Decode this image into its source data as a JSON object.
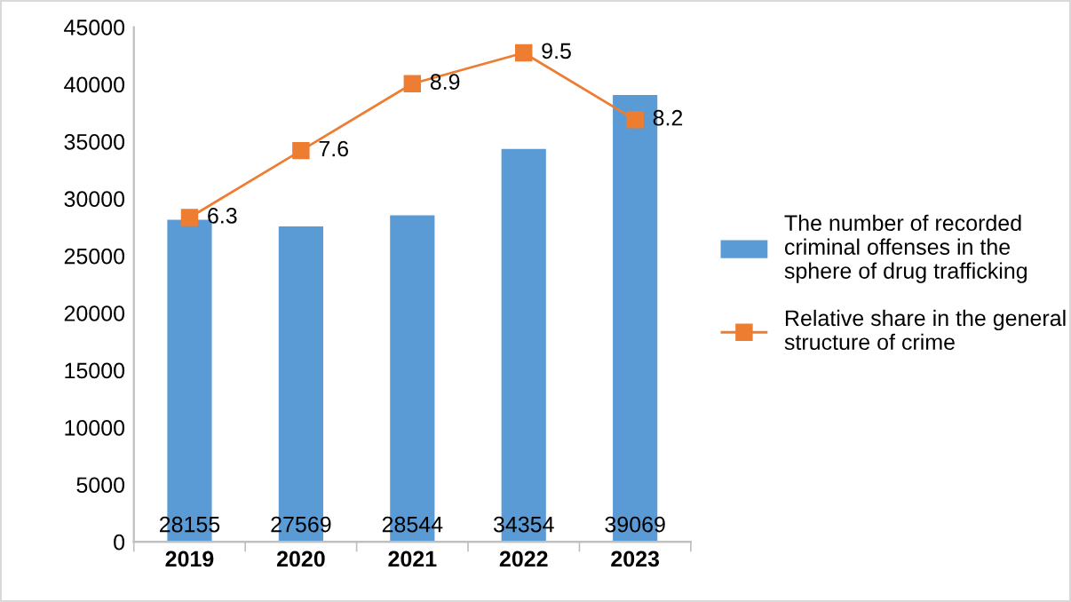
{
  "chart_data": {
    "type": "bar",
    "categories": [
      "2019",
      "2020",
      "2021",
      "2022",
      "2023"
    ],
    "series": [
      {
        "name": "The number of recorded criminal offenses in the sphere of drug trafficking",
        "color": "#5b9bd5",
        "values": [
          28155,
          27569,
          28544,
          34354,
          39069
        ]
      },
      {
        "name": "Relative share in the general structure of crime",
        "color": "#ed7d31",
        "type": "line",
        "axis": "y2",
        "marker": "square",
        "values": [
          6.3,
          7.6,
          8.9,
          9.5,
          8.2
        ]
      }
    ],
    "ylim": [
      0,
      45000
    ],
    "yticks": [
      0,
      5000,
      10000,
      15000,
      20000,
      25000,
      30000,
      35000,
      40000,
      45000
    ],
    "y2lim": [
      0,
      10
    ],
    "data_labels": true,
    "legend": "right",
    "grid": false
  }
}
